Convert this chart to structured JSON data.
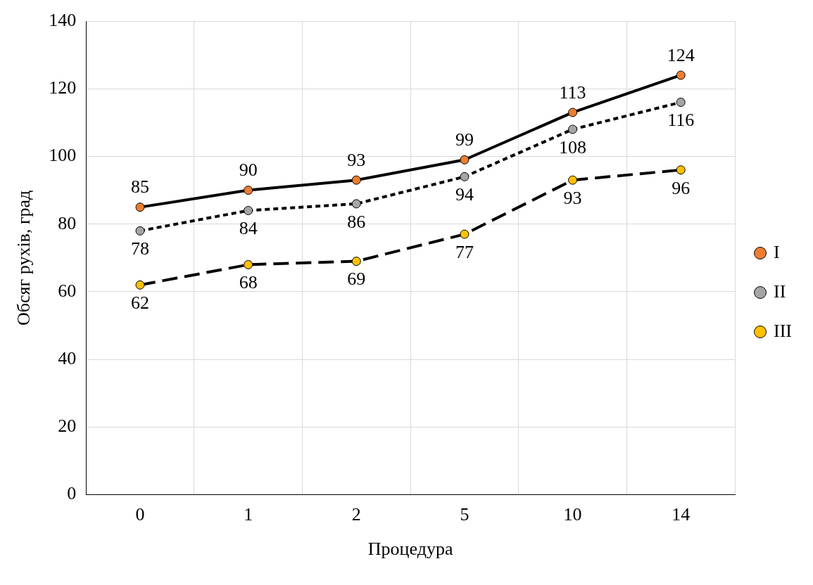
{
  "chart_data": {
    "type": "line",
    "xlabel": "Процедура",
    "ylabel": "Обсяг рухів, град",
    "categories": [
      "0",
      "1",
      "2",
      "5",
      "10",
      "14"
    ],
    "series": [
      {
        "name": "I",
        "color": "#ed7d31",
        "line_style": "solid",
        "values": [
          85,
          90,
          93,
          99,
          113,
          124
        ]
      },
      {
        "name": "II",
        "color": "#a5a5a5",
        "line_style": "dotted",
        "values": [
          78,
          84,
          86,
          94,
          108,
          116
        ]
      },
      {
        "name": "III",
        "color": "#ffc000",
        "line_style": "dashed",
        "values": [
          62,
          68,
          69,
          77,
          93,
          96
        ]
      }
    ],
    "ylim": [
      0,
      140
    ],
    "yticks": [
      0,
      20,
      40,
      60,
      80,
      100,
      120,
      140
    ],
    "grid": true,
    "legend": "right",
    "marker": "circle",
    "data_labels": true
  }
}
